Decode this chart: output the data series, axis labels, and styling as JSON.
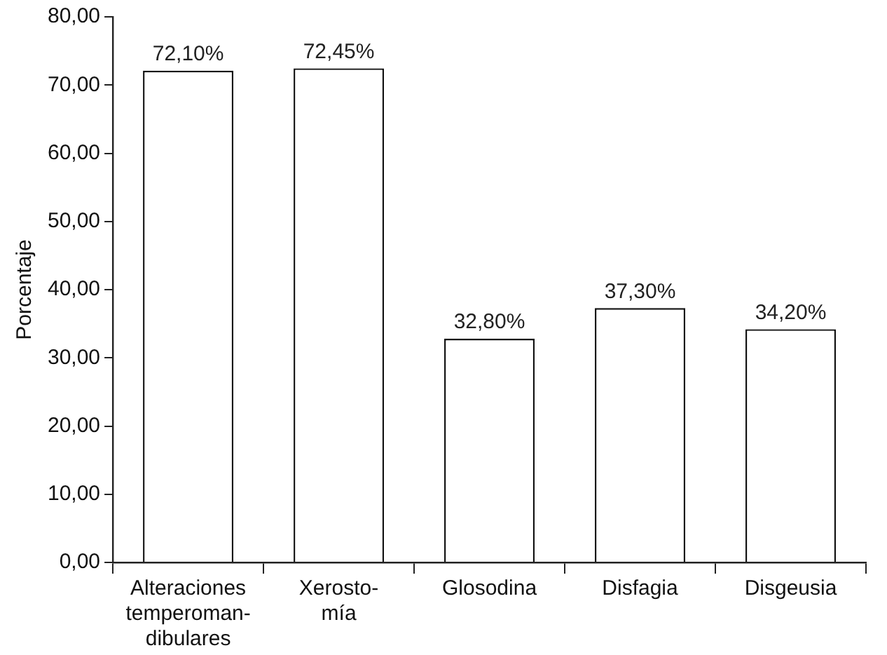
{
  "chart_data": {
    "type": "bar",
    "ylabel": "Porcentaje",
    "categories": [
      "Alteraciones\ntemperoman-\ndibulares",
      "Xerosto-\nmía",
      "Glosodina",
      "Disfagia",
      "Disgeusia"
    ],
    "values": [
      72.1,
      72.45,
      32.8,
      37.3,
      34.2
    ],
    "value_labels": [
      "72,10%",
      "72,45%",
      "32,80%",
      "37,30%",
      "34,20%"
    ],
    "color": "#ffffff",
    "ylim": [
      0,
      80
    ],
    "yticks": [
      {
        "value": 0,
        "label": "0,00"
      },
      {
        "value": 10,
        "label": "10,00"
      },
      {
        "value": 20,
        "label": "20,00"
      },
      {
        "value": 30,
        "label": "30,00"
      },
      {
        "value": 40,
        "label": "40,00"
      },
      {
        "value": 50,
        "label": "50,00"
      },
      {
        "value": 60,
        "label": "60,00"
      },
      {
        "value": 70,
        "label": "70,00"
      },
      {
        "value": 80,
        "label": "80,00"
      }
    ],
    "grid": false,
    "legend": false
  }
}
